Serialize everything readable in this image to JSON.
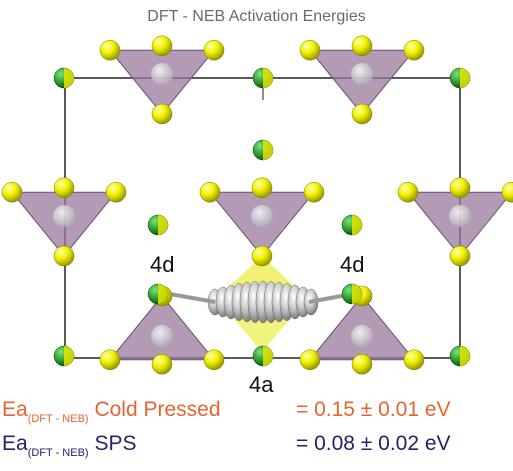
{
  "title": "DFT - NEB Activation Energies",
  "site_labels": {
    "left": "4d",
    "right": "4d",
    "bottom": "4a"
  },
  "results": [
    {
      "prefix": "Ea",
      "subscript": "(DFT - NEB)",
      "condition": "Cold Pressed",
      "value": "= 0.15 ± 0.01 eV"
    },
    {
      "prefix": "Ea",
      "subscript": "(DFT - NEB)",
      "condition": "SPS",
      "value": "= 0.08 ± 0.02 eV"
    }
  ],
  "colors": {
    "tetrahedron": "#9a7a9e",
    "sulfur": "#e6e600",
    "lithium": "#2a9d2a",
    "path": "#c0c0c0",
    "cold_pressed": "#e8632f",
    "sps": "#23236b"
  }
}
